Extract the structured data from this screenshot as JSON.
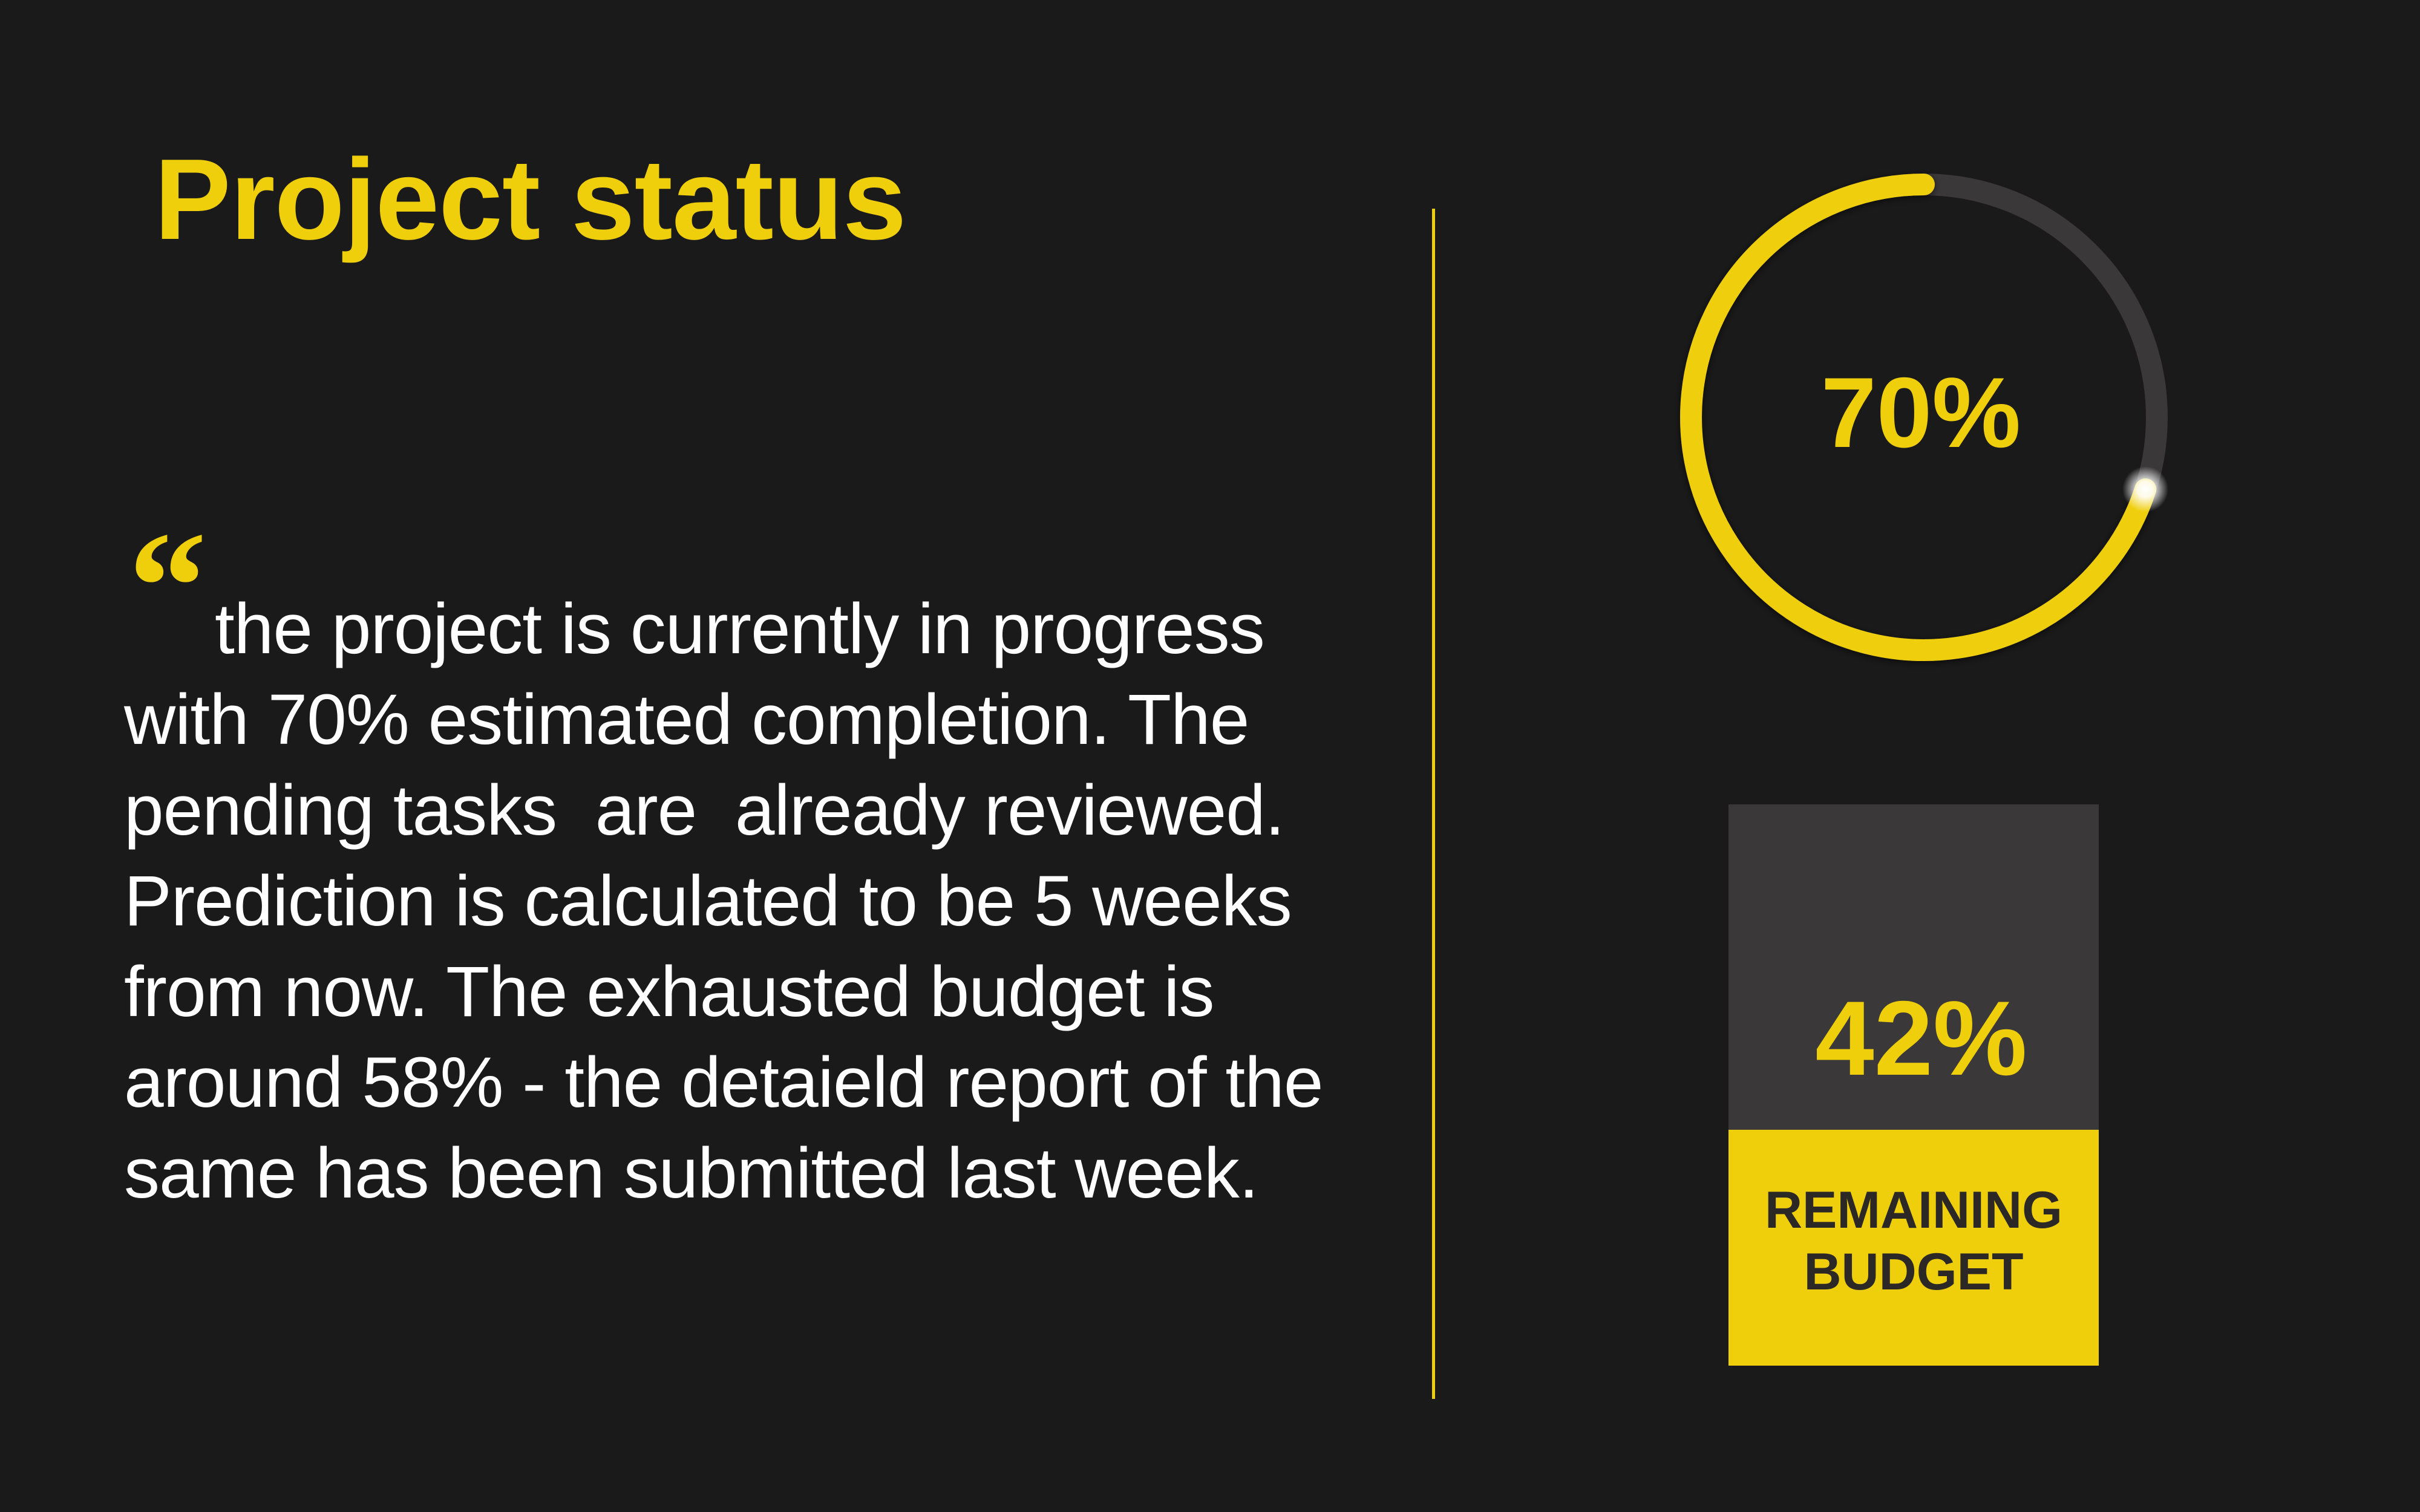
{
  "title": "Project status",
  "quote": {
    "mark": "“",
    "text": "the project is currently in progress\nwith 70% estimated completion. The\npending tasks  are  already reviewed.\nPrediction is calculated to be 5 weeks\nfrom now. The exhausted budget is\naround 58% - the detaield report of the\nsame has been submitted last week."
  },
  "completion": {
    "value": 70,
    "label": "70%"
  },
  "budget": {
    "remaining_percent": 42,
    "value": "42%",
    "label": "REMAINING\nBUDGET"
  },
  "colors": {
    "background": "#1b1a1b",
    "accent": "#efcf0b",
    "track": "#3a3838",
    "text": "#ffffff",
    "card_label": "#2b2826"
  }
}
